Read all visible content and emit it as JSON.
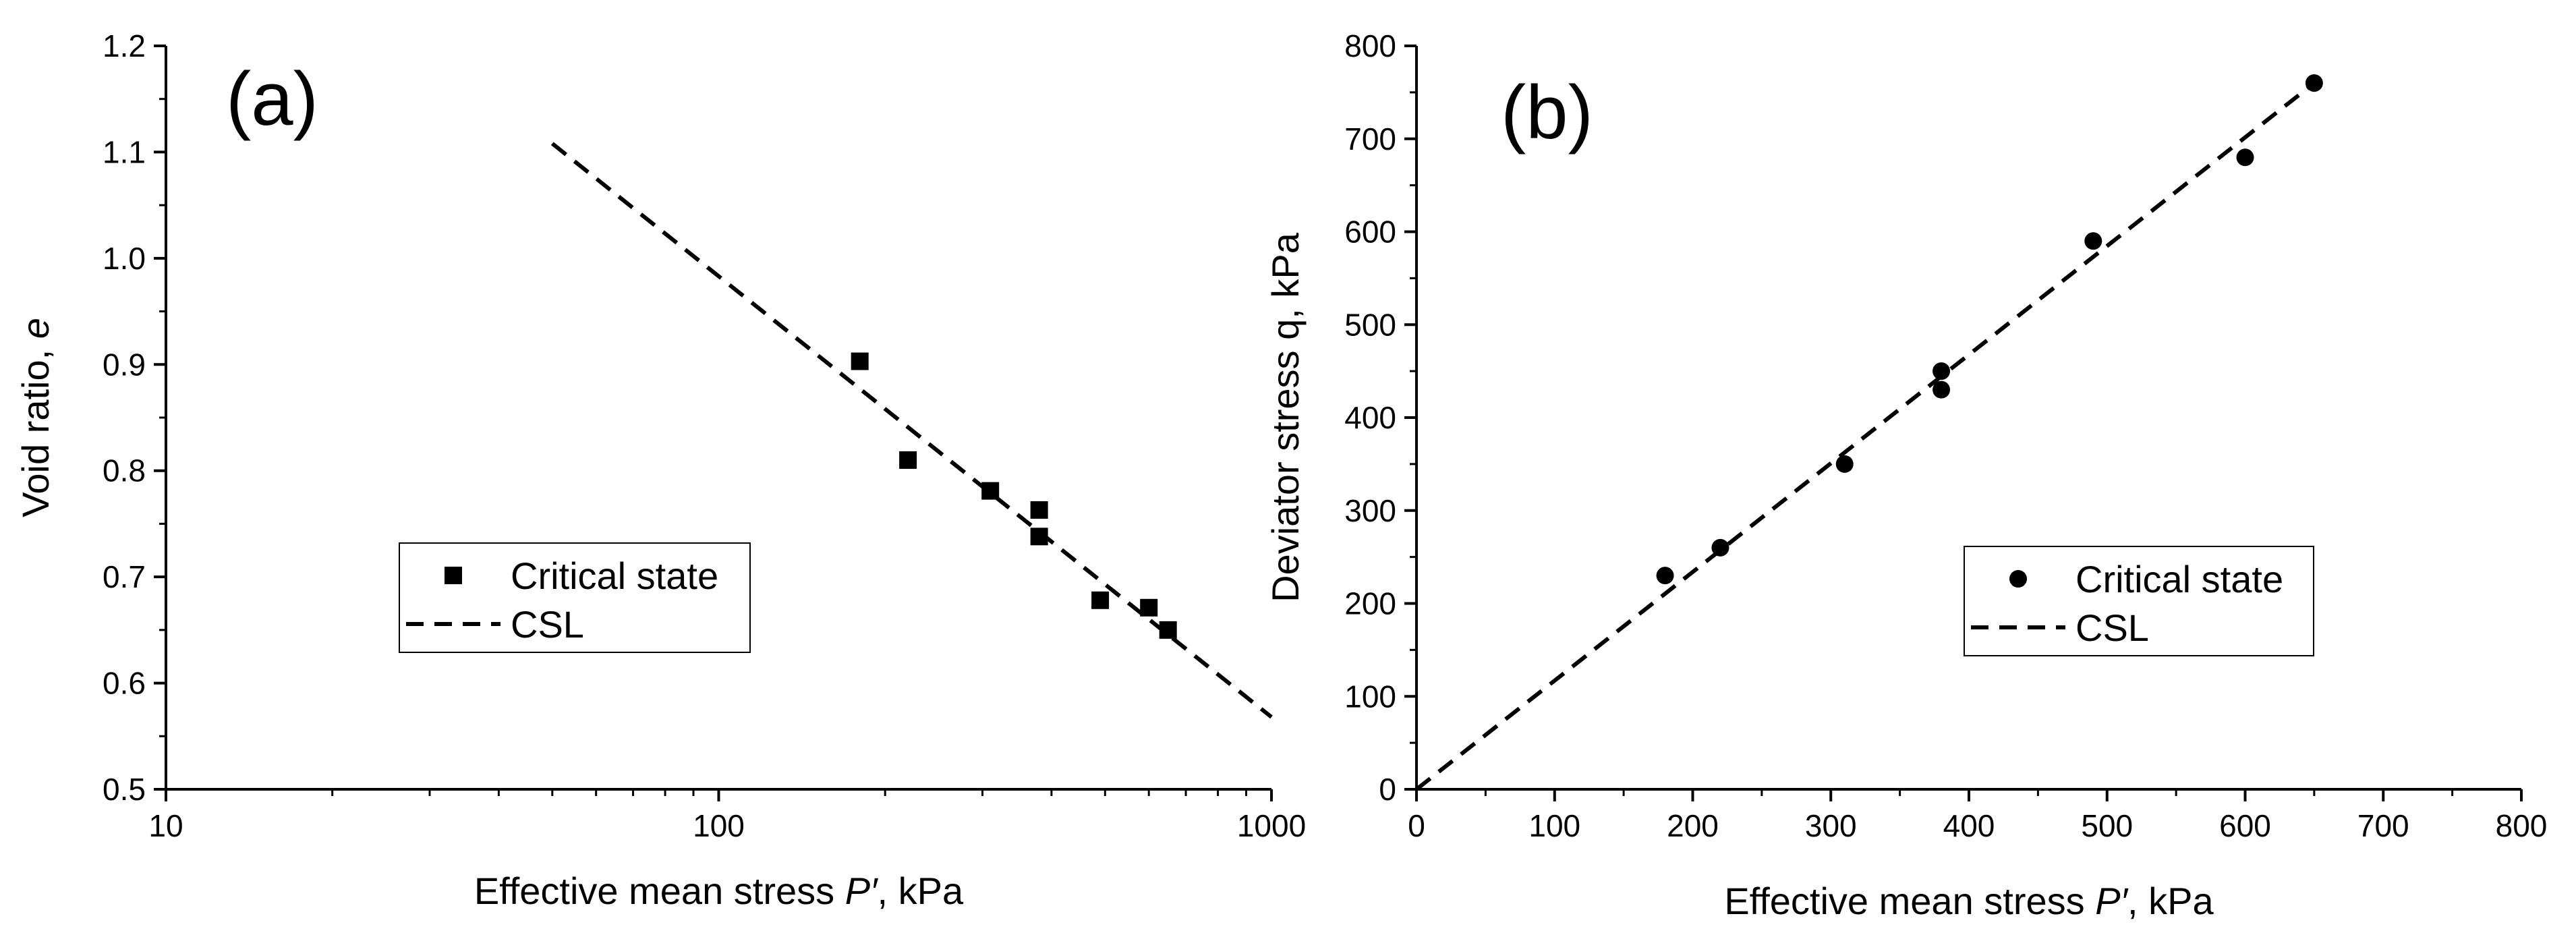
{
  "chart_data": [
    {
      "type": "scatter",
      "panel_label": "(a)",
      "xlabel": "Effective mean stress P′, kPa",
      "xlabel_parts": [
        "Effective mean stress ",
        "P′",
        ", kPa"
      ],
      "ylabel": "Void ratio, e",
      "ylabel_parts": [
        "Void ratio, ",
        "e"
      ],
      "xscale": "log",
      "xlim": [
        10,
        1000
      ],
      "ylim": [
        0.5,
        1.2
      ],
      "x_ticks": [
        10,
        100,
        1000
      ],
      "x_tick_labels": [
        "10",
        "100",
        "1000"
      ],
      "y_ticks": [
        0.5,
        0.6,
        0.7,
        0.8,
        0.9,
        1.0,
        1.1,
        1.2
      ],
      "y_tick_labels": [
        "0.5",
        "0.6",
        "0.7",
        "0.8",
        "0.9",
        "1.0",
        "1.1",
        "1.2"
      ],
      "grid": false,
      "legend_position": "center-left",
      "series": [
        {
          "name": "Critical state",
          "kind": "scatter",
          "marker": "square",
          "color": "#000000",
          "x": [
            180,
            220,
            310,
            380,
            380,
            490,
            600,
            650
          ],
          "y": [
            0.903,
            0.81,
            0.781,
            0.763,
            0.738,
            0.678,
            0.671,
            0.65
          ]
        },
        {
          "name": "CSL",
          "kind": "line",
          "style": "dashed",
          "color": "#000000",
          "x": [
            50,
            1000
          ],
          "y": [
            1.108,
            0.568
          ]
        }
      ]
    },
    {
      "type": "scatter",
      "panel_label": "(b)",
      "xlabel": "Effective mean stress P′, kPa",
      "xlabel_parts": [
        "Effective mean stress ",
        "P′",
        ", kPa"
      ],
      "ylabel": "Deviator stress q, kPa",
      "ylabel_parts": [
        "Deviator stress q, kPa",
        ""
      ],
      "xscale": "linear",
      "xlim": [
        0,
        800
      ],
      "ylim": [
        0,
        800
      ],
      "x_ticks": [
        0,
        100,
        200,
        300,
        400,
        500,
        600,
        700,
        800
      ],
      "x_tick_labels": [
        "0",
        "100",
        "200",
        "300",
        "400",
        "500",
        "600",
        "700",
        "800"
      ],
      "y_ticks": [
        0,
        100,
        200,
        300,
        400,
        500,
        600,
        700,
        800
      ],
      "y_tick_labels": [
        "0",
        "100",
        "200",
        "300",
        "400",
        "500",
        "600",
        "700",
        "800"
      ],
      "grid": false,
      "legend_position": "center-right",
      "series": [
        {
          "name": "Critical state",
          "kind": "scatter",
          "marker": "circle",
          "color": "#000000",
          "x": [
            180,
            220,
            310,
            380,
            380,
            490,
            600,
            650
          ],
          "y": [
            230,
            260,
            350,
            450,
            430,
            590,
            680,
            760
          ]
        },
        {
          "name": "CSL",
          "kind": "line",
          "style": "dashed",
          "color": "#000000",
          "x": [
            0,
            650
          ],
          "y": [
            0,
            760
          ]
        }
      ]
    }
  ]
}
